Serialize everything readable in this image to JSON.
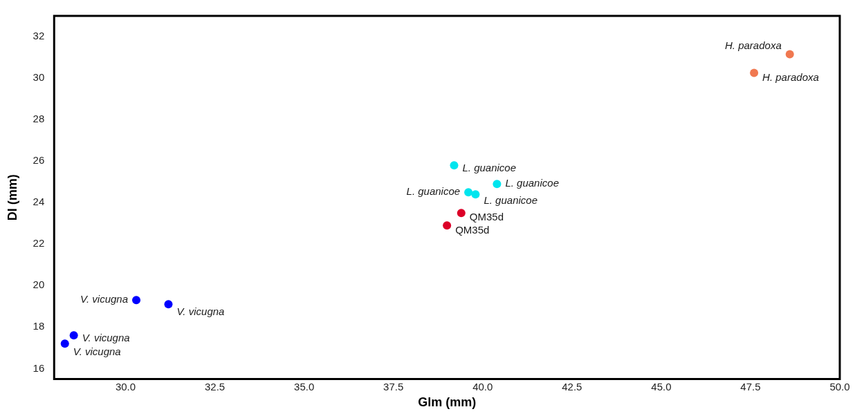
{
  "chart_data": {
    "type": "scatter",
    "xlabel": "Glm (mm)",
    "ylabel": "Dl (mm)",
    "xlim": [
      28.0,
      50.0
    ],
    "xticks": [
      {
        "value": 30,
        "label": "30.0"
      },
      {
        "value": 32.5,
        "label": "32.5"
      },
      {
        "value": 35,
        "label": "35.0"
      },
      {
        "value": 37.5,
        "label": "37.5"
      },
      {
        "value": 40,
        "label": "40.0"
      },
      {
        "value": 42.5,
        "label": "42.5"
      },
      {
        "value": 45,
        "label": "45.0"
      },
      {
        "value": 47.5,
        "label": "47.5"
      },
      {
        "value": 50,
        "label": "50.0"
      }
    ],
    "ylim": [
      15.5,
      33.0
    ],
    "yticks": [
      16,
      18,
      20,
      22,
      24,
      26,
      28,
      30,
      32
    ],
    "grid": false,
    "legend": false,
    "marker": "circle",
    "series": [
      {
        "color": "#0000ff",
        "x": [
          30.3,
          31.2,
          28.55,
          28.3
        ],
        "values": [
          19.3,
          19.1,
          17.6,
          17.2
        ],
        "value_labels": [
          "V. vicugna",
          "V. vicugna",
          "V. vicugna",
          "V. vicugna"
        ]
      },
      {
        "color": "#00e5ee",
        "x": [
          39.2,
          40.4,
          39.6,
          39.8
        ],
        "values": [
          25.8,
          24.9,
          24.5,
          24.4
        ],
        "value_labels": [
          "L. guanicoe",
          "L. guanicoe",
          "L. guanicoe",
          "L. guanicoe"
        ]
      },
      {
        "color": "#dc0028",
        "x": [
          39.4,
          39.0
        ],
        "values": [
          23.5,
          22.9
        ],
        "value_labels": [
          "QM35d",
          "QM35d"
        ]
      },
      {
        "color": "#f07850",
        "x": [
          48.6,
          47.6
        ],
        "values": [
          31.15,
          30.25
        ],
        "value_labels": [
          "H. paradoxa",
          "H. paradoxa"
        ]
      }
    ]
  }
}
